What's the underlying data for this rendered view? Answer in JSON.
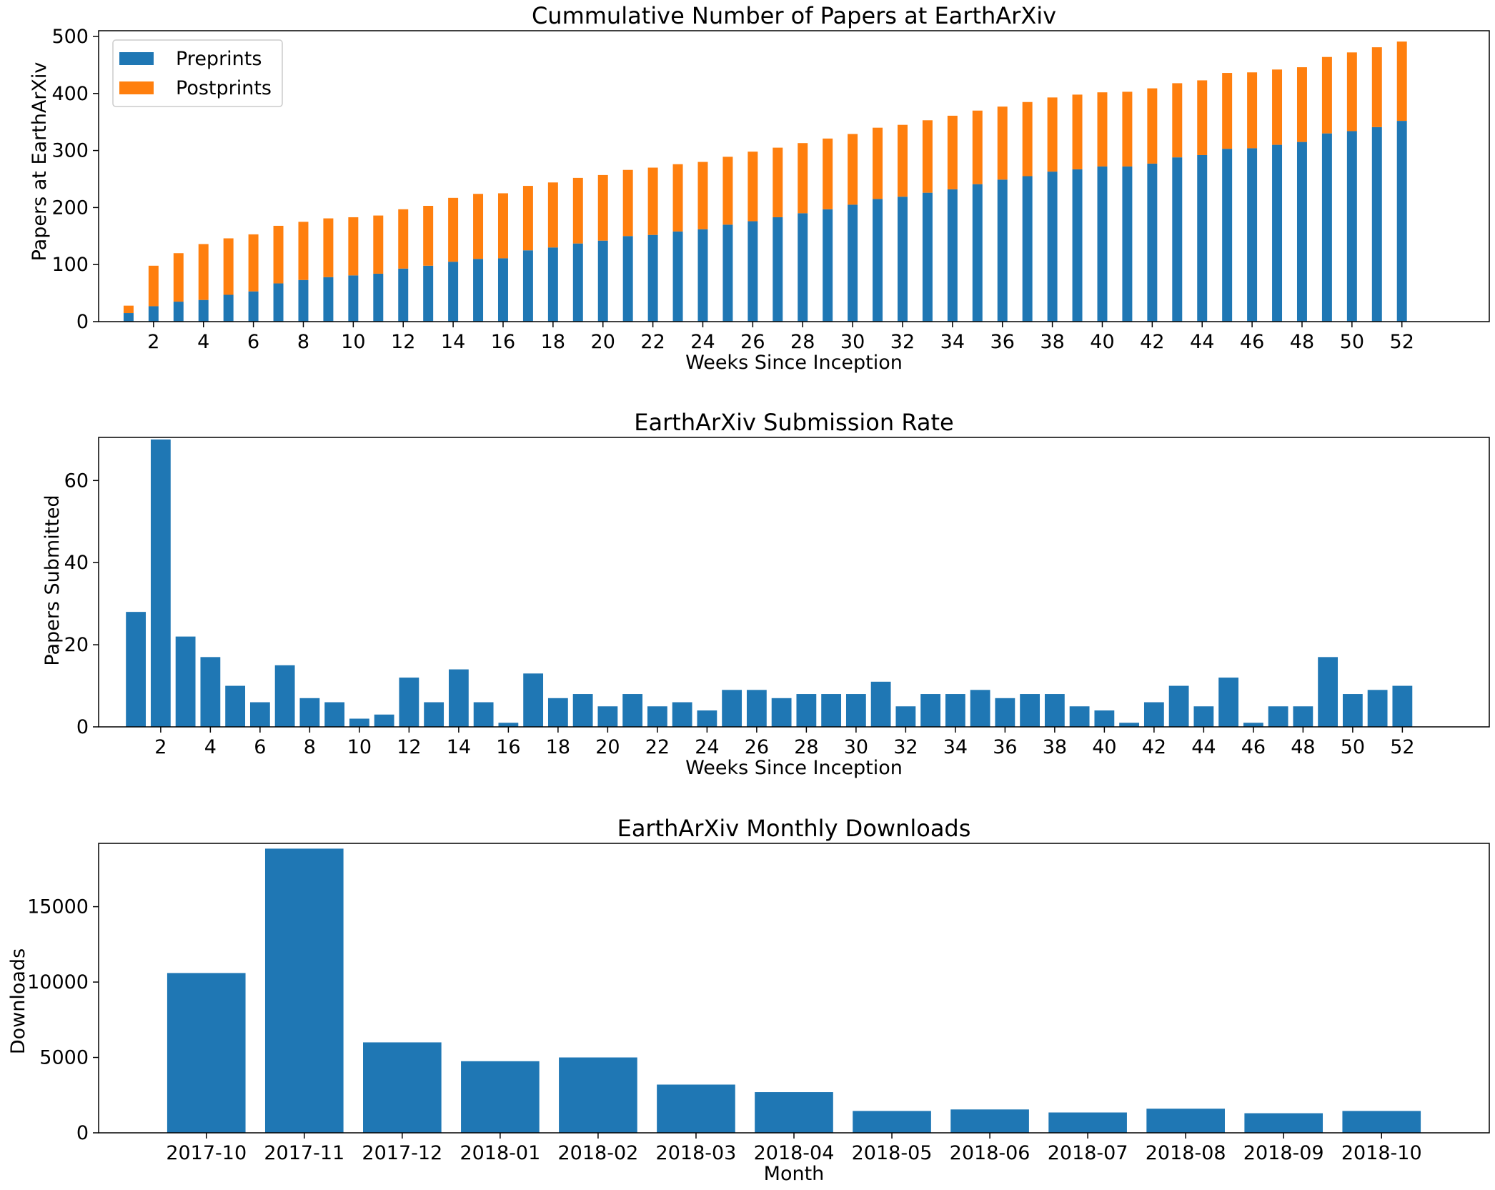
{
  "chart_data": [
    {
      "type": "bar",
      "stacked": true,
      "title": "Cummulative Number of Papers at EarthArXiv",
      "xlabel": "Weeks Since Inception",
      "ylabel": "Papers at EarthArXiv",
      "ylim": [
        0,
        510
      ],
      "yticks": [
        0,
        100,
        200,
        300,
        400,
        500
      ],
      "xlim": [
        -0.2,
        55.5
      ],
      "xticks": [
        2,
        4,
        6,
        8,
        10,
        12,
        14,
        16,
        18,
        20,
        22,
        24,
        26,
        28,
        30,
        32,
        34,
        36,
        38,
        40,
        42,
        44,
        46,
        48,
        50,
        52
      ],
      "bar_width": 0.4,
      "grid": false,
      "legend_position": "top-left",
      "x": [
        1,
        2,
        3,
        4,
        5,
        6,
        7,
        8,
        9,
        10,
        11,
        12,
        13,
        14,
        15,
        16,
        17,
        18,
        19,
        20,
        21,
        22,
        23,
        24,
        25,
        26,
        27,
        28,
        29,
        30,
        31,
        32,
        33,
        34,
        35,
        36,
        37,
        38,
        39,
        40,
        41,
        42,
        43,
        44,
        45,
        46,
        47,
        48,
        49,
        50,
        51,
        52
      ],
      "series": [
        {
          "name": "Preprints",
          "color": "#1f77b4",
          "values": [
            15,
            27,
            35,
            38,
            47,
            53,
            67,
            73,
            78,
            81,
            84,
            93,
            98,
            105,
            110,
            111,
            125,
            130,
            137,
            142,
            150,
            152,
            158,
            162,
            170,
            176,
            183,
            190,
            197,
            205,
            215,
            219,
            226,
            232,
            241,
            249,
            255,
            263,
            267,
            272,
            272,
            277,
            288,
            292,
            303,
            304,
            310,
            315,
            330,
            334,
            341,
            352
          ]
        },
        {
          "name": "Postprints",
          "color": "#ff7f0e",
          "values": [
            13,
            71,
            85,
            98,
            99,
            100,
            101,
            102,
            103,
            102,
            102,
            104,
            105,
            112,
            114,
            114,
            113,
            114,
            115,
            115,
            116,
            118,
            118,
            118,
            119,
            122,
            122,
            123,
            124,
            124,
            125,
            126,
            127,
            129,
            129,
            128,
            130,
            130,
            131,
            130,
            131,
            132,
            130,
            131,
            133,
            133,
            132,
            131,
            134,
            138,
            140,
            139
          ]
        }
      ]
    },
    {
      "type": "bar",
      "title": "EarthArXiv Submission Rate",
      "xlabel": "Weeks Since Inception",
      "ylabel": "Papers Submitted",
      "ylim": [
        0,
        70.5
      ],
      "yticks": [
        0,
        20,
        40,
        60
      ],
      "xlim": [
        -0.5,
        55.5
      ],
      "xticks": [
        2,
        4,
        6,
        8,
        10,
        12,
        14,
        16,
        18,
        20,
        22,
        24,
        26,
        28,
        30,
        32,
        34,
        36,
        38,
        40,
        42,
        44,
        46,
        48,
        50,
        52
      ],
      "bar_width": 0.8,
      "grid": false,
      "x": [
        1,
        2,
        3,
        4,
        5,
        6,
        7,
        8,
        9,
        10,
        11,
        12,
        13,
        14,
        15,
        16,
        17,
        18,
        19,
        20,
        21,
        22,
        23,
        24,
        25,
        26,
        27,
        28,
        29,
        30,
        31,
        32,
        33,
        34,
        35,
        36,
        37,
        38,
        39,
        40,
        41,
        42,
        43,
        44,
        45,
        46,
        47,
        48,
        49,
        50,
        51,
        52
      ],
      "series": [
        {
          "color": "#1f77b4",
          "values": [
            28,
            70,
            22,
            17,
            10,
            6,
            15,
            7,
            6,
            2,
            3,
            12,
            6,
            14,
            6,
            1,
            13,
            7,
            8,
            5,
            8,
            5,
            6,
            4,
            9,
            9,
            7,
            8,
            8,
            8,
            11,
            5,
            8,
            8,
            9,
            7,
            8,
            8,
            5,
            4,
            1,
            6,
            10,
            5,
            12,
            1,
            5,
            5,
            17,
            8,
            9,
            10
          ]
        }
      ]
    },
    {
      "type": "bar",
      "title": "EarthArXiv Monthly Downloads",
      "xlabel": "Month",
      "ylabel": "Downloads",
      "ylim": [
        0,
        19200
      ],
      "yticks": [
        0,
        5000,
        10000,
        15000
      ],
      "xlim": [
        -1.1,
        13.1
      ],
      "bar_width": 0.8,
      "grid": false,
      "categories": [
        "2017-10",
        "2017-11",
        "2017-12",
        "2018-01",
        "2018-02",
        "2018-03",
        "2018-04",
        "2018-05",
        "2018-06",
        "2018-07",
        "2018-08",
        "2018-09",
        "2018-10"
      ],
      "series": [
        {
          "color": "#1f77b4",
          "values": [
            10600,
            18850,
            6000,
            4750,
            5000,
            3200,
            2700,
            1450,
            1550,
            1350,
            1600,
            1300,
            1450
          ]
        }
      ]
    }
  ]
}
